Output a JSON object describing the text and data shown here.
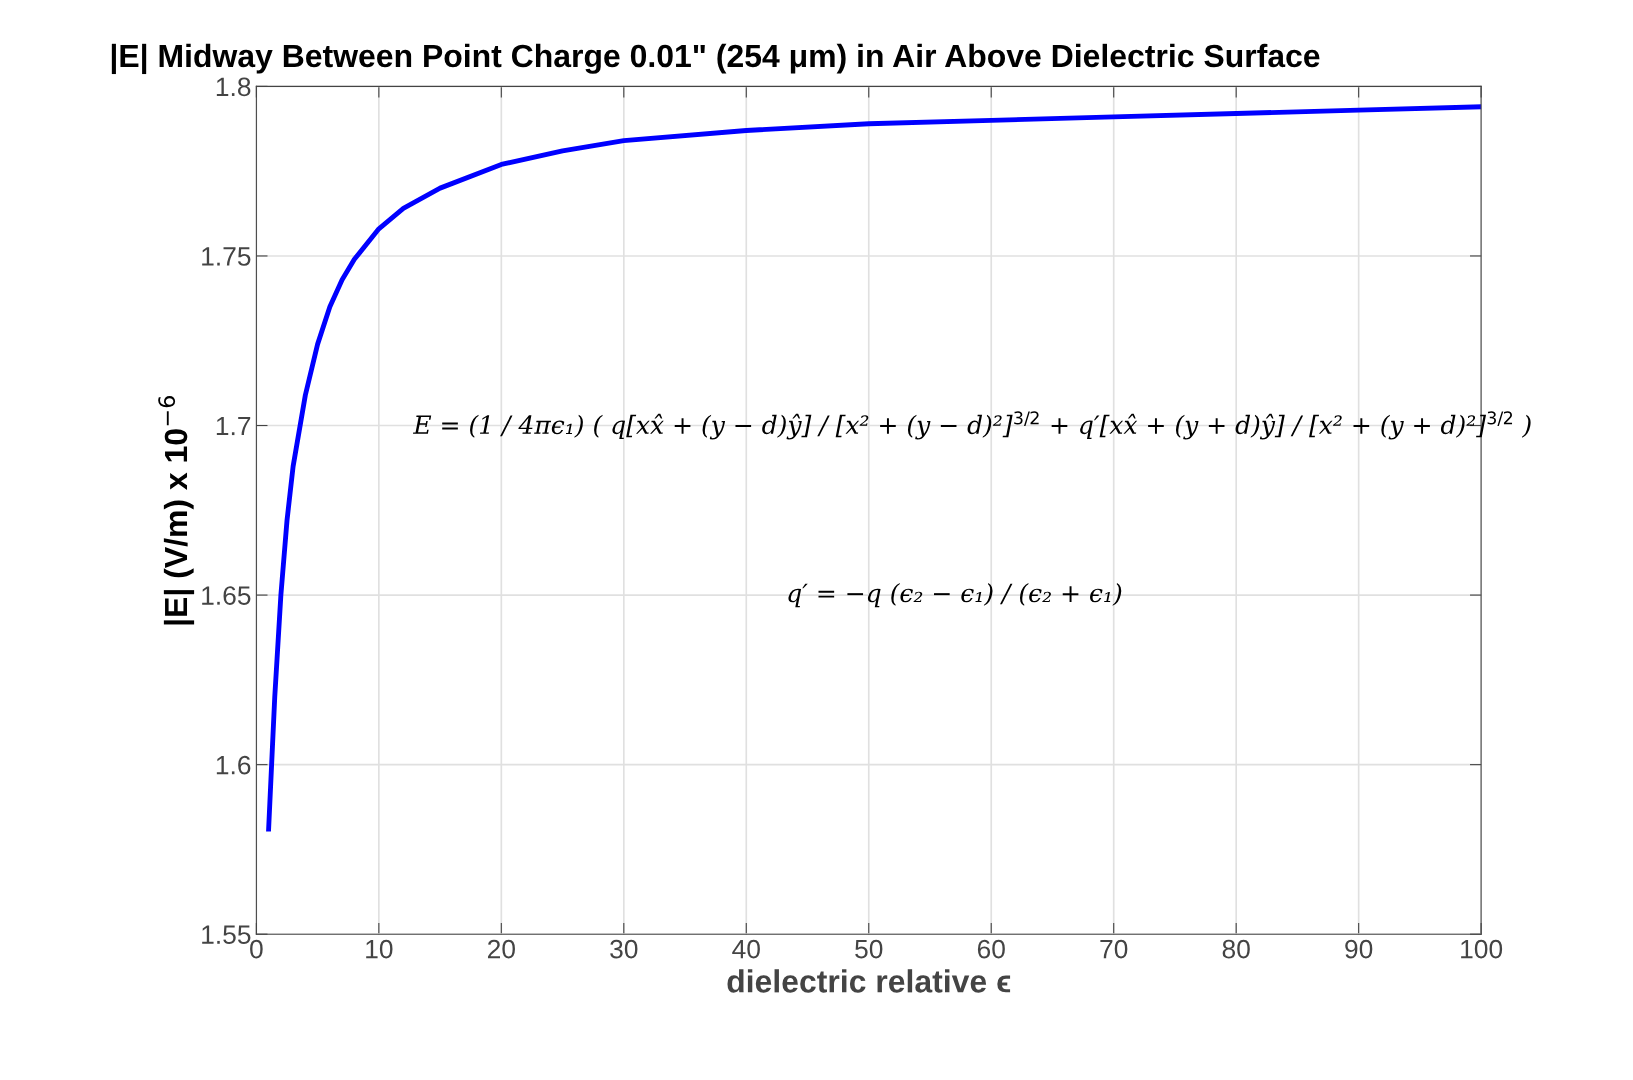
{
  "chart_data": {
    "type": "line",
    "title": "|E| Midway Between Point Charge 0.01\" (254 μm) in Air Above Dielectric Surface",
    "xlabel": "dielectric relative ϵ",
    "ylabel": "|E| (V/m) x 10$^{−6}$",
    "x": [
      1,
      1.5,
      2,
      2.5,
      3,
      4,
      5,
      6,
      7,
      8,
      10,
      12,
      15,
      20,
      25,
      30,
      40,
      50,
      60,
      70,
      80,
      90,
      100
    ],
    "series": [
      {
        "color": "#0000ff",
        "values": [
          1.581,
          1.62,
          1.65,
          1.672,
          1.688,
          1.709,
          1.724,
          1.735,
          1.743,
          1.749,
          1.758,
          1.764,
          1.77,
          1.777,
          1.781,
          1.784,
          1.787,
          1.789,
          1.79,
          1.791,
          1.792,
          1.793,
          1.794
        ]
      }
    ],
    "xlim": [
      0,
      100
    ],
    "xticks": [
      0,
      10,
      20,
      30,
      40,
      50,
      60,
      70,
      80,
      90,
      100
    ],
    "ylim": [
      1.55,
      1.8
    ],
    "yticks": [
      1.55,
      1.6,
      1.65,
      1.7,
      1.75,
      1.8
    ],
    "grid": true,
    "legend": false,
    "marker": "none",
    "line_style": "solid",
    "annotations": [
      "E = (1 / 4πϵ₁) ( q[xx̂ + (y − d)ŷ] / [x² + (y − d)²]$^{3/2}$ + q′[xx̂ + (y + d)ŷ] / [x² + (y + d)²]$^{3/2}$ )",
      "q′ = −q (ϵ₂ − ϵ₁) / (ϵ₂ + ϵ₁)"
    ]
  }
}
